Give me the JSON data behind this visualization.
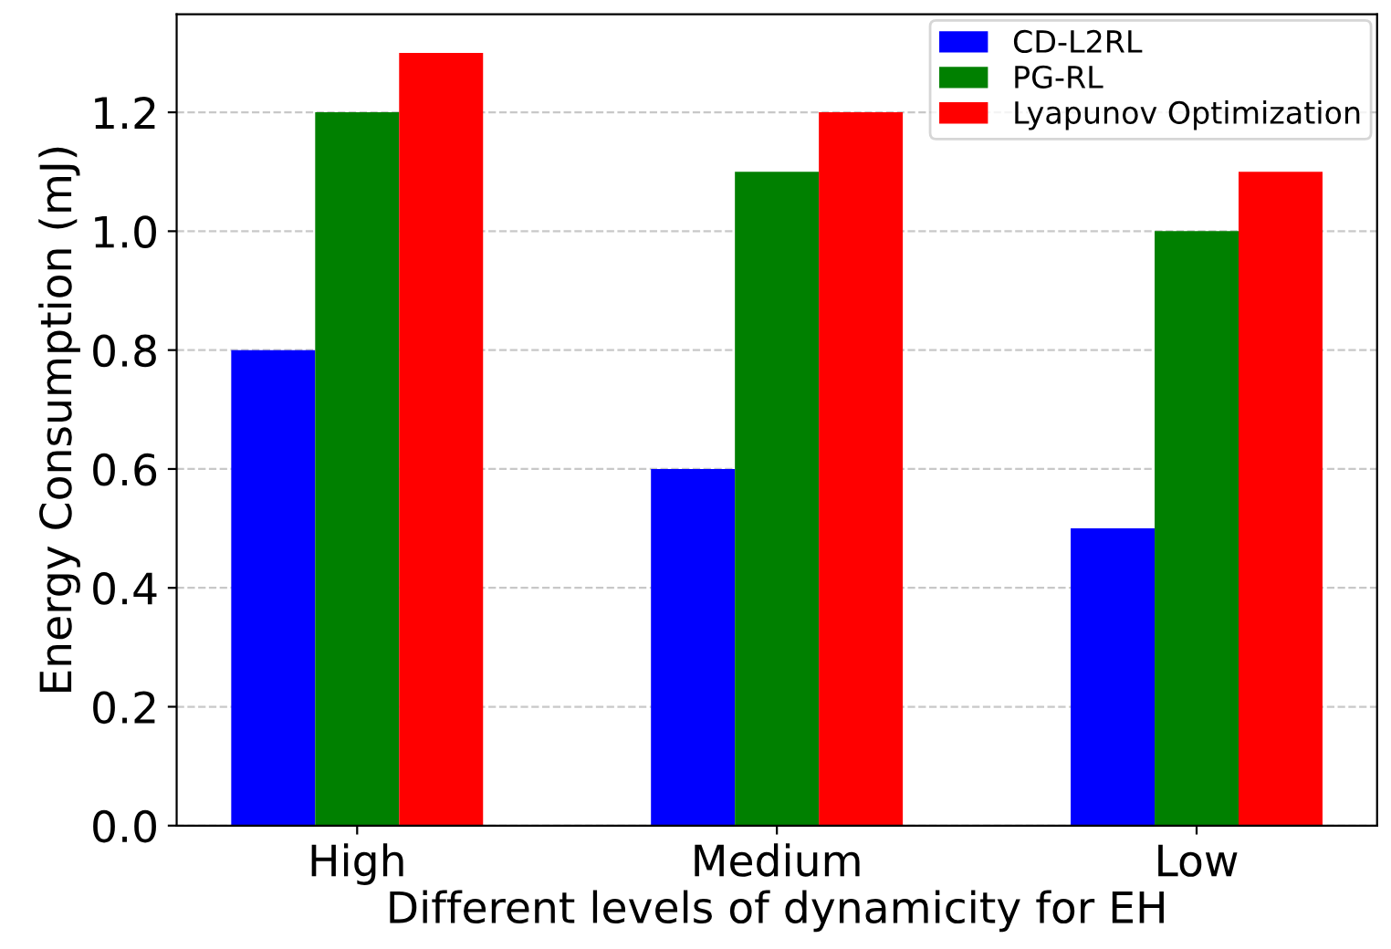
{
  "chart_data": {
    "type": "bar",
    "xlabel": "Different levels of dynamicity for EH",
    "ylabel": "Energy Consumption (mJ)",
    "categories": [
      "High",
      "Medium",
      "Low"
    ],
    "series": [
      {
        "name": "CD-L2RL",
        "color": "#0000ff",
        "values": [
          0.8,
          0.6,
          0.5
        ]
      },
      {
        "name": "PG-RL",
        "color": "#008000",
        "values": [
          1.2,
          1.1,
          1.0
        ]
      },
      {
        "name": "Lyapunov Optimization",
        "color": "#ff0000",
        "values": [
          1.3,
          1.2,
          1.1
        ]
      }
    ],
    "ylim": [
      0,
      1.365
    ],
    "yticks": [
      {
        "value": 0,
        "label": "0.0"
      },
      0.2,
      0.4,
      0.6,
      0.8,
      {
        "value": 1,
        "label": "1.0"
      },
      1.2
    ],
    "grid": "y",
    "legend": "top right"
  }
}
